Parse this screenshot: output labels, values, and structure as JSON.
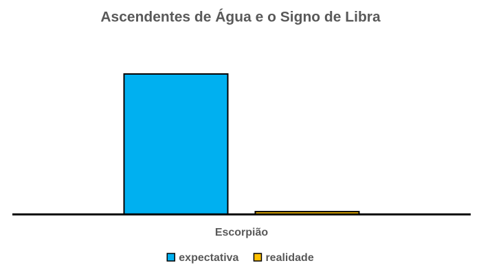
{
  "chart_data": {
    "type": "bar",
    "title": "Ascendentes de Água e o Signo de Libra",
    "categories": [
      "Escorpião"
    ],
    "series": [
      {
        "name": "expectativa",
        "color": "#00b0f0",
        "values": [
          100
        ]
      },
      {
        "name": "realidade",
        "color": "#ffc000",
        "values": [
          2
        ]
      }
    ],
    "legend": "bottom"
  }
}
